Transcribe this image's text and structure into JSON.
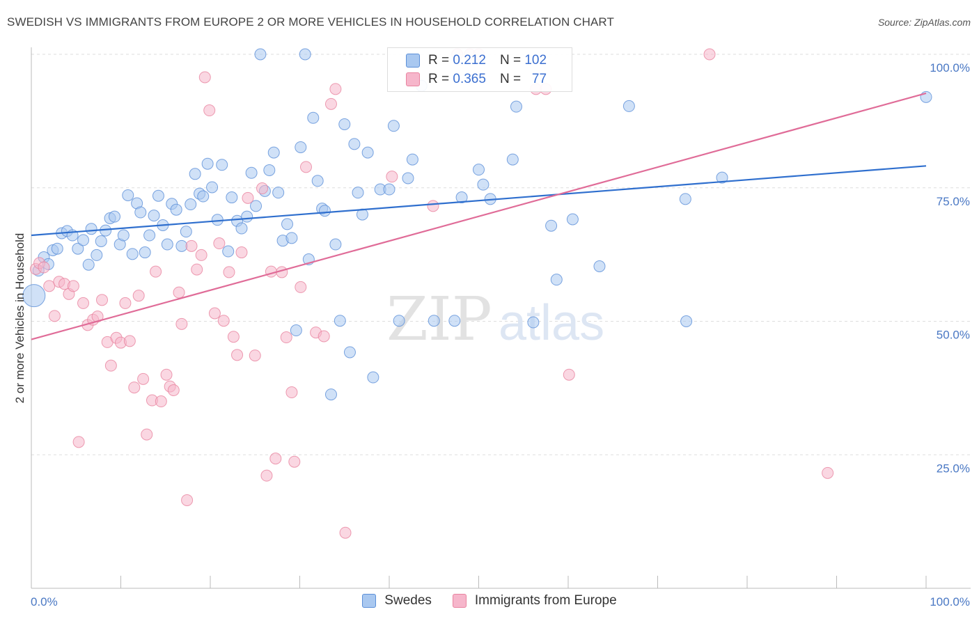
{
  "header": {
    "title": "SWEDISH VS IMMIGRANTS FROM EUROPE 2 OR MORE VEHICLES IN HOUSEHOLD CORRELATION CHART",
    "source": "Source: ZipAtlas.com"
  },
  "legend": {
    "rows": [
      {
        "r_label": "R =",
        "r_value": "0.212",
        "n_label": "N =",
        "n_value": "102"
      },
      {
        "r_label": "R =",
        "r_value": "0.365",
        "n_label": "N =",
        "n_value": "77"
      }
    ]
  },
  "bottom_legend": {
    "items": [
      "Swedes",
      "Immigrants from Europe"
    ]
  },
  "watermark": {
    "part1": "ZIP",
    "part2": "atlas"
  },
  "colors": {
    "blue_fill": "#a9c8f0",
    "blue_stroke": "#5b8fd8",
    "blue_line": "#2f6fce",
    "pink_fill": "#f6b6cb",
    "pink_stroke": "#e9839f",
    "pink_line": "#e06c98",
    "grid": "#dddddd",
    "tick_label": "#4a78c4"
  },
  "chart_data": {
    "type": "scatter",
    "title": "SWEDISH VS IMMIGRANTS FROM EUROPE 2 OR MORE VEHICLES IN HOUSEHOLD CORRELATION CHART",
    "xlabel": "",
    "ylabel": "2 or more Vehicles in Household",
    "xlim": [
      0,
      100
    ],
    "ylim": [
      0,
      103
    ],
    "x_tick_labels": [
      "0.0%",
      "100.0%"
    ],
    "y_ticks": [
      25,
      50,
      75,
      100
    ],
    "y_tick_labels": [
      "25.0%",
      "50.0%",
      "75.0%",
      "100.0%"
    ],
    "grid": true,
    "legend_position": "top-center",
    "series": [
      {
        "name": "Swedes",
        "r": 0.212,
        "n": 102,
        "trend": {
          "x": [
            0,
            100
          ],
          "y": [
            66.1,
            79.1
          ]
        },
        "points": [
          [
            0.3,
            54.8
          ],
          [
            0.8,
            59.5
          ],
          [
            1.4,
            62.0
          ],
          [
            1.9,
            60.7
          ],
          [
            2.4,
            63.3
          ],
          [
            2.9,
            63.6
          ],
          [
            3.4,
            66.5
          ],
          [
            4.0,
            66.9
          ],
          [
            4.6,
            66.1
          ],
          [
            5.2,
            63.6
          ],
          [
            5.8,
            65.2
          ],
          [
            6.4,
            60.6
          ],
          [
            6.7,
            67.3
          ],
          [
            7.3,
            62.4
          ],
          [
            7.8,
            65.0
          ],
          [
            8.3,
            67.0
          ],
          [
            8.8,
            69.3
          ],
          [
            9.3,
            69.6
          ],
          [
            9.9,
            64.4
          ],
          [
            10.3,
            66.1
          ],
          [
            10.8,
            73.6
          ],
          [
            11.3,
            62.6
          ],
          [
            11.8,
            72.1
          ],
          [
            12.2,
            70.4
          ],
          [
            12.7,
            62.9
          ],
          [
            13.2,
            66.1
          ],
          [
            13.7,
            69.8
          ],
          [
            14.2,
            73.5
          ],
          [
            14.7,
            68.0
          ],
          [
            15.2,
            64.4
          ],
          [
            15.7,
            72.0
          ],
          [
            16.2,
            70.9
          ],
          [
            16.8,
            64.1
          ],
          [
            17.3,
            66.8
          ],
          [
            17.8,
            71.9
          ],
          [
            18.3,
            77.6
          ],
          [
            18.8,
            73.9
          ],
          [
            19.2,
            73.4
          ],
          [
            19.7,
            79.5
          ],
          [
            20.2,
            75.1
          ],
          [
            20.8,
            69.0
          ],
          [
            21.3,
            79.3
          ],
          [
            22.0,
            63.1
          ],
          [
            22.4,
            73.2
          ],
          [
            23.0,
            68.8
          ],
          [
            23.5,
            67.4
          ],
          [
            24.1,
            69.6
          ],
          [
            24.6,
            77.8
          ],
          [
            25.1,
            71.6
          ],
          [
            25.6,
            100.0
          ],
          [
            26.1,
            74.4
          ],
          [
            26.6,
            78.3
          ],
          [
            27.1,
            81.6
          ],
          [
            27.6,
            74.1
          ],
          [
            28.1,
            65.1
          ],
          [
            28.6,
            68.2
          ],
          [
            29.1,
            65.6
          ],
          [
            29.6,
            48.3
          ],
          [
            30.1,
            82.6
          ],
          [
            30.6,
            100.0
          ],
          [
            31.0,
            61.6
          ],
          [
            31.5,
            88.1
          ],
          [
            32.0,
            76.3
          ],
          [
            32.5,
            71.1
          ],
          [
            32.8,
            70.7
          ],
          [
            33.5,
            36.3
          ],
          [
            34.0,
            64.4
          ],
          [
            34.5,
            50.1
          ],
          [
            35.0,
            86.9
          ],
          [
            35.6,
            44.2
          ],
          [
            36.1,
            83.2
          ],
          [
            36.5,
            74.1
          ],
          [
            37.0,
            70.0
          ],
          [
            37.6,
            81.6
          ],
          [
            38.2,
            39.5
          ],
          [
            39.0,
            74.7
          ],
          [
            40.0,
            74.7
          ],
          [
            40.5,
            86.6
          ],
          [
            41.1,
            50.1
          ],
          [
            42.1,
            76.8
          ],
          [
            42.6,
            80.3
          ],
          [
            43.6,
            94.1
          ],
          [
            45.0,
            50.1
          ],
          [
            47.3,
            50.1
          ],
          [
            48.1,
            73.2
          ],
          [
            50.0,
            78.4
          ],
          [
            50.5,
            75.6
          ],
          [
            51.3,
            72.9
          ],
          [
            53.8,
            80.3
          ],
          [
            54.2,
            90.2
          ],
          [
            56.1,
            49.8
          ],
          [
            58.1,
            67.9
          ],
          [
            58.7,
            57.8
          ],
          [
            60.5,
            69.1
          ],
          [
            63.5,
            60.3
          ],
          [
            66.8,
            90.3
          ],
          [
            73.1,
            72.9
          ],
          [
            73.2,
            50.0
          ],
          [
            77.2,
            76.9
          ],
          [
            100.0,
            92.0
          ]
        ]
      },
      {
        "name": "Immigrants from Europe",
        "r": 0.365,
        "n": 77,
        "trend": {
          "x": [
            0,
            100
          ],
          "y": [
            46.6,
            92.7
          ]
        },
        "points": [
          [
            0.5,
            59.8
          ],
          [
            0.9,
            60.9
          ],
          [
            1.4,
            60.1
          ],
          [
            2.0,
            56.6
          ],
          [
            2.6,
            51.0
          ],
          [
            3.1,
            57.4
          ],
          [
            3.7,
            57.0
          ],
          [
            4.2,
            55.1
          ],
          [
            4.7,
            56.6
          ],
          [
            5.3,
            27.4
          ],
          [
            5.8,
            53.4
          ],
          [
            6.3,
            49.3
          ],
          [
            6.9,
            50.3
          ],
          [
            7.4,
            50.9
          ],
          [
            7.9,
            54.0
          ],
          [
            8.5,
            46.1
          ],
          [
            8.9,
            41.7
          ],
          [
            9.5,
            46.9
          ],
          [
            10.0,
            46.0
          ],
          [
            10.5,
            53.4
          ],
          [
            11.0,
            46.3
          ],
          [
            11.5,
            37.6
          ],
          [
            12.0,
            54.8
          ],
          [
            12.5,
            39.2
          ],
          [
            12.9,
            28.8
          ],
          [
            13.5,
            35.2
          ],
          [
            13.9,
            59.3
          ],
          [
            14.5,
            35.0
          ],
          [
            15.1,
            40.0
          ],
          [
            15.5,
            37.8
          ],
          [
            15.9,
            37.1
          ],
          [
            16.5,
            55.4
          ],
          [
            16.8,
            49.5
          ],
          [
            17.4,
            16.5
          ],
          [
            17.9,
            64.1
          ],
          [
            18.5,
            59.7
          ],
          [
            19.0,
            62.4
          ],
          [
            19.4,
            95.7
          ],
          [
            19.9,
            89.5
          ],
          [
            20.5,
            51.5
          ],
          [
            21.0,
            64.6
          ],
          [
            21.5,
            50.1
          ],
          [
            22.1,
            59.2
          ],
          [
            22.6,
            47.1
          ],
          [
            23.0,
            43.7
          ],
          [
            23.5,
            62.9
          ],
          [
            24.2,
            73.1
          ],
          [
            25.0,
            43.6
          ],
          [
            25.8,
            74.9
          ],
          [
            26.3,
            21.1
          ],
          [
            26.8,
            59.3
          ],
          [
            27.3,
            24.3
          ],
          [
            28.0,
            59.2
          ],
          [
            28.5,
            47.0
          ],
          [
            29.1,
            36.7
          ],
          [
            29.4,
            23.7
          ],
          [
            30.1,
            56.4
          ],
          [
            30.7,
            78.9
          ],
          [
            31.8,
            47.9
          ],
          [
            32.7,
            47.2
          ],
          [
            33.5,
            90.7
          ],
          [
            34.0,
            93.5
          ],
          [
            35.1,
            10.4
          ],
          [
            40.3,
            77.1
          ],
          [
            44.9,
            71.6
          ],
          [
            47.6,
            100.0
          ],
          [
            49.0,
            100.0
          ],
          [
            50.0,
            100.0
          ],
          [
            56.4,
            93.5
          ],
          [
            57.5,
            93.5
          ],
          [
            60.1,
            40.0
          ],
          [
            75.8,
            100.0
          ],
          [
            89.0,
            21.6
          ]
        ]
      }
    ]
  }
}
